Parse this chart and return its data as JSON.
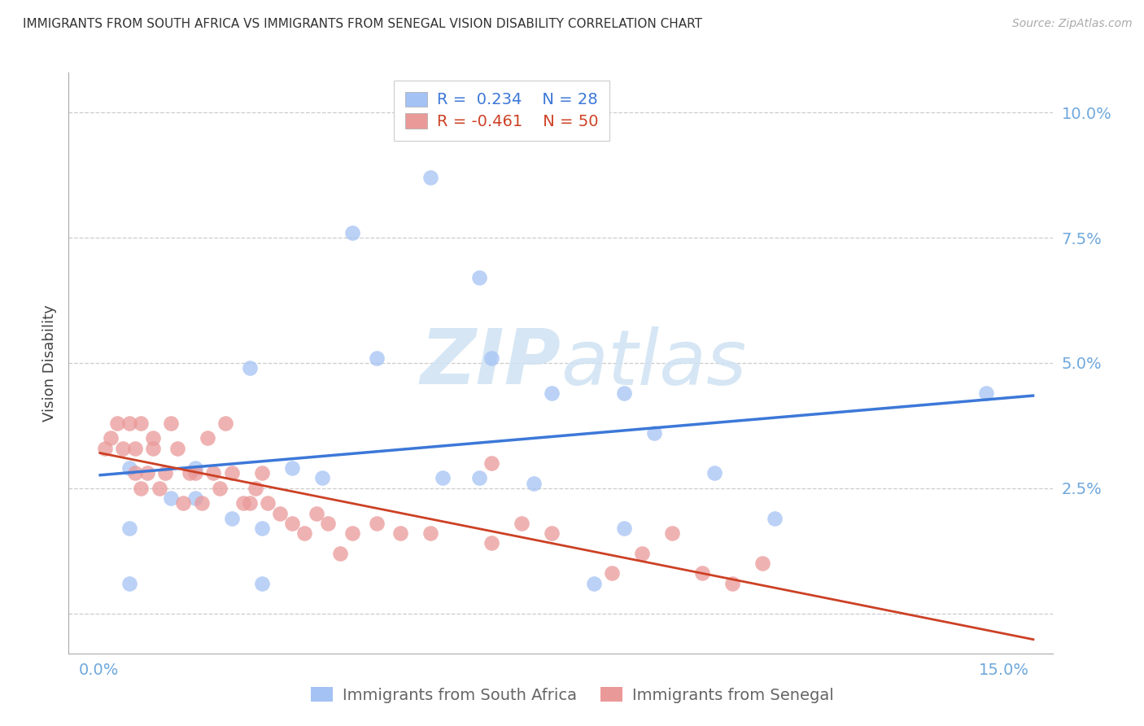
{
  "title": "IMMIGRANTS FROM SOUTH AFRICA VS IMMIGRANTS FROM SENEGAL VISION DISABILITY CORRELATION CHART",
  "source": "Source: ZipAtlas.com",
  "ylabel": "Vision Disability",
  "xlim": [
    -0.005,
    0.158
  ],
  "ylim": [
    -0.008,
    0.108
  ],
  "legend_r1": "R =  0.234   N = 28",
  "legend_r2": "R = -0.461   N = 50",
  "legend_label1": "Immigrants from South Africa",
  "legend_label2": "Immigrants from Senegal",
  "color_blue": "#a4c2f4",
  "color_pink": "#ea9999",
  "color_blue_line": "#3c78d8",
  "color_pink_line": "#cc4125",
  "color_axis_labels": "#6fa8dc",
  "watermark_color": "#cfe2f3",
  "south_africa_x": [
    0.055,
    0.042,
    0.063,
    0.065,
    0.075,
    0.087,
    0.046,
    0.025,
    0.016,
    0.005,
    0.012,
    0.016,
    0.005,
    0.022,
    0.027,
    0.032,
    0.037,
    0.063,
    0.072,
    0.057,
    0.092,
    0.102,
    0.147,
    0.112,
    0.087,
    0.082,
    0.027,
    0.005
  ],
  "south_africa_y": [
    0.087,
    0.076,
    0.067,
    0.051,
    0.044,
    0.044,
    0.051,
    0.049,
    0.029,
    0.029,
    0.023,
    0.023,
    0.017,
    0.019,
    0.017,
    0.029,
    0.027,
    0.027,
    0.026,
    0.027,
    0.036,
    0.028,
    0.044,
    0.019,
    0.017,
    0.006,
    0.006,
    0.006
  ],
  "senegal_x": [
    0.001,
    0.002,
    0.003,
    0.004,
    0.005,
    0.006,
    0.006,
    0.007,
    0.007,
    0.008,
    0.009,
    0.009,
    0.01,
    0.011,
    0.012,
    0.013,
    0.014,
    0.015,
    0.016,
    0.017,
    0.018,
    0.019,
    0.02,
    0.021,
    0.022,
    0.024,
    0.025,
    0.026,
    0.027,
    0.028,
    0.03,
    0.032,
    0.034,
    0.036,
    0.038,
    0.042,
    0.046,
    0.05,
    0.055,
    0.065,
    0.07,
    0.075,
    0.085,
    0.09,
    0.095,
    0.1,
    0.105,
    0.11,
    0.065,
    0.04
  ],
  "senegal_y": [
    0.033,
    0.035,
    0.038,
    0.033,
    0.038,
    0.028,
    0.033,
    0.025,
    0.038,
    0.028,
    0.033,
    0.035,
    0.025,
    0.028,
    0.038,
    0.033,
    0.022,
    0.028,
    0.028,
    0.022,
    0.035,
    0.028,
    0.025,
    0.038,
    0.028,
    0.022,
    0.022,
    0.025,
    0.028,
    0.022,
    0.02,
    0.018,
    0.016,
    0.02,
    0.018,
    0.016,
    0.018,
    0.016,
    0.016,
    0.014,
    0.018,
    0.016,
    0.008,
    0.012,
    0.016,
    0.008,
    0.006,
    0.01,
    0.03,
    0.012
  ]
}
